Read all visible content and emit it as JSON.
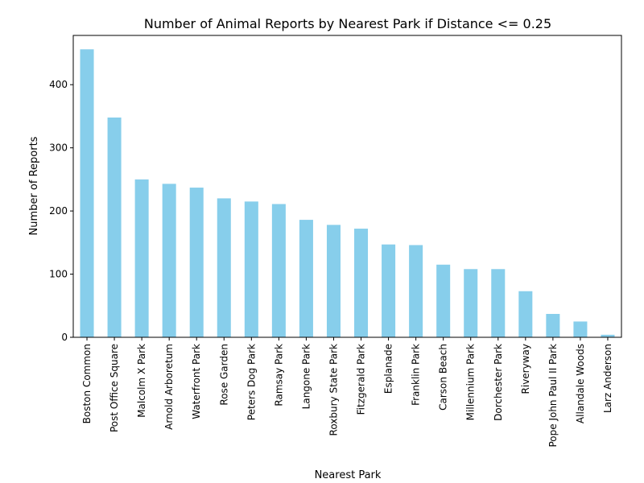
{
  "chart_data": {
    "type": "bar",
    "title": "Number of Animal Reports by Nearest Park if Distance <= 0.25",
    "xlabel": "Nearest Park",
    "ylabel": "Number of Reports",
    "categories": [
      "Boston Common",
      "Post Office Square",
      "Malcolm X Park",
      "Arnold Arboretum",
      "Waterfront Park",
      "Rose Garden",
      "Peters Dog Park",
      "Ramsay Park",
      "Langone Park",
      "Roxbury State Park",
      "Fitzgerald Park",
      "Esplanade",
      "Franklin Park",
      "Carson Beach",
      "Millennium Park",
      "Dorchester Park",
      "Riveryway",
      "Pope John Paul II Park",
      "Allandale Woods",
      "Larz Anderson"
    ],
    "values": [
      456,
      348,
      250,
      243,
      237,
      220,
      215,
      211,
      186,
      178,
      172,
      147,
      146,
      115,
      108,
      108,
      73,
      37,
      25,
      4
    ],
    "ylim": [
      0,
      478
    ],
    "yticks": [
      0,
      100,
      200,
      300,
      400
    ],
    "bar_color": "#87ceeb",
    "grid": false,
    "legend": "none"
  }
}
